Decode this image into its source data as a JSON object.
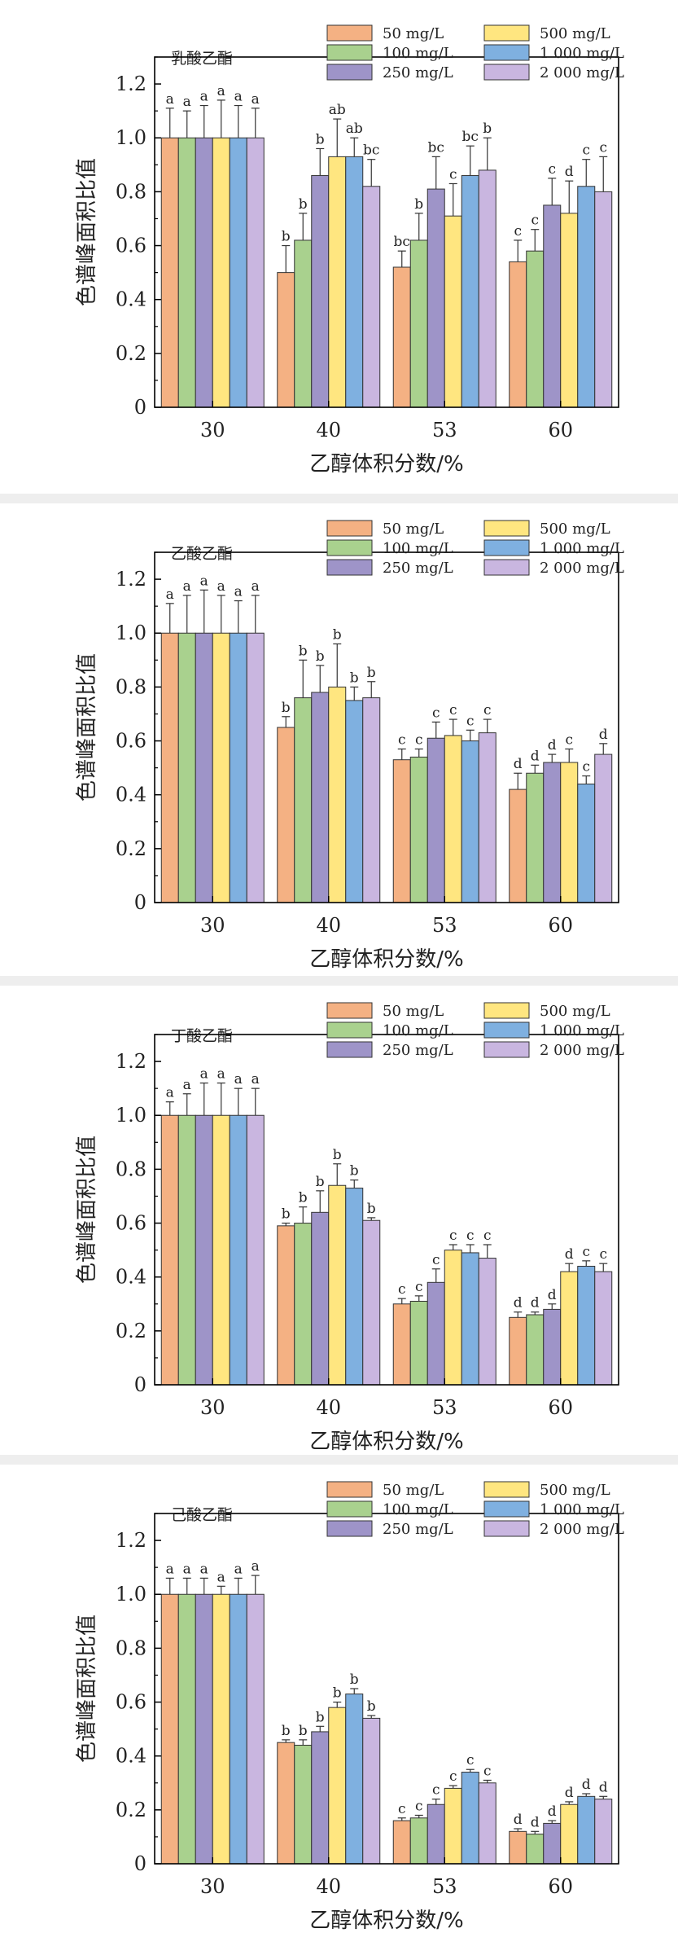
{
  "colors": {
    "50": "#f4b183",
    "100": "#a9d18e",
    "250": "#9e94c8",
    "500": "#ffe680",
    "1000": "#7fb0e0",
    "2000": "#c9b6e0"
  },
  "chart_data": [
    {
      "type": "bar",
      "title": "乳酸乙酯",
      "xlabel": "乙醇体积分数/%",
      "ylabel": "色谱峰面积比值",
      "ylim": [
        0,
        1.3
      ],
      "yticks": [
        "0",
        "0.2",
        "0.4",
        "0.6",
        "0.8",
        "1.0",
        "1.2"
      ],
      "categories": [
        "30",
        "40",
        "53",
        "60"
      ],
      "legend_position": "top-right",
      "series": [
        {
          "name": "50 mg/L",
          "values": [
            1.0,
            0.5,
            0.52,
            0.54
          ],
          "errors": [
            0.11,
            0.1,
            0.06,
            0.08
          ],
          "letters": [
            "a",
            "b",
            "bc",
            "c"
          ]
        },
        {
          "name": "100 mg/L",
          "values": [
            1.0,
            0.62,
            0.62,
            0.58
          ],
          "errors": [
            0.1,
            0.1,
            0.1,
            0.08
          ],
          "letters": [
            "a",
            "b",
            "b",
            "c"
          ]
        },
        {
          "name": "250 mg/L",
          "values": [
            1.0,
            0.86,
            0.81,
            0.75
          ],
          "errors": [
            0.12,
            0.1,
            0.12,
            0.1
          ],
          "letters": [
            "a",
            "b",
            "bc",
            "c"
          ]
        },
        {
          "name": "500 mg/L",
          "values": [
            1.0,
            0.93,
            0.71,
            0.72
          ],
          "errors": [
            0.14,
            0.14,
            0.12,
            0.12
          ],
          "letters": [
            "a",
            "ab",
            "c",
            "d"
          ]
        },
        {
          "name": "1 000 mg/L",
          "values": [
            1.0,
            0.93,
            0.86,
            0.82
          ],
          "errors": [
            0.12,
            0.07,
            0.11,
            0.1
          ],
          "letters": [
            "a",
            "ab",
            "bc",
            "c"
          ]
        },
        {
          "name": "2 000 mg/L",
          "values": [
            1.0,
            0.82,
            0.88,
            0.8
          ],
          "errors": [
            0.11,
            0.1,
            0.12,
            0.13
          ],
          "letters": [
            "a",
            "bc",
            "b",
            "c"
          ]
        }
      ]
    },
    {
      "type": "bar",
      "title": "乙酸乙酯",
      "xlabel": "乙醇体积分数/%",
      "ylabel": "色谱峰面积比值",
      "ylim": [
        0,
        1.3
      ],
      "yticks": [
        "0",
        "0.2",
        "0.4",
        "0.6",
        "0.8",
        "1.0",
        "1.2"
      ],
      "categories": [
        "30",
        "40",
        "53",
        "60"
      ],
      "legend_position": "top-right",
      "series": [
        {
          "name": "50 mg/L",
          "values": [
            1.0,
            0.65,
            0.53,
            0.42
          ],
          "errors": [
            0.11,
            0.04,
            0.04,
            0.06
          ],
          "letters": [
            "a",
            "b",
            "c",
            "d"
          ]
        },
        {
          "name": "100 mg/L",
          "values": [
            1.0,
            0.76,
            0.54,
            0.48
          ],
          "errors": [
            0.14,
            0.14,
            0.03,
            0.03
          ],
          "letters": [
            "a",
            "b",
            "c",
            "d"
          ]
        },
        {
          "name": "250 mg/L",
          "values": [
            1.0,
            0.78,
            0.61,
            0.52
          ],
          "errors": [
            0.16,
            0.1,
            0.06,
            0.03
          ],
          "letters": [
            "a",
            "b",
            "c",
            "d"
          ]
        },
        {
          "name": "500 mg/L",
          "values": [
            1.0,
            0.8,
            0.62,
            0.52
          ],
          "errors": [
            0.14,
            0.16,
            0.06,
            0.05
          ],
          "letters": [
            "a",
            "b",
            "c",
            "c"
          ]
        },
        {
          "name": "1 000 mg/L",
          "values": [
            1.0,
            0.75,
            0.6,
            0.44
          ],
          "errors": [
            0.12,
            0.05,
            0.04,
            0.03
          ],
          "letters": [
            "a",
            "b",
            "c",
            "c"
          ]
        },
        {
          "name": "2 000 mg/L",
          "values": [
            1.0,
            0.76,
            0.63,
            0.55
          ],
          "errors": [
            0.14,
            0.06,
            0.05,
            0.04
          ],
          "letters": [
            "a",
            "b",
            "c",
            "d"
          ]
        }
      ]
    },
    {
      "type": "bar",
      "title": "丁酸乙酯",
      "xlabel": "乙醇体积分数/%",
      "ylabel": "色谱峰面积比值",
      "ylim": [
        0,
        1.3
      ],
      "yticks": [
        "0",
        "0.2",
        "0.4",
        "0.6",
        "0.8",
        "1.0",
        "1.2"
      ],
      "categories": [
        "30",
        "40",
        "53",
        "60"
      ],
      "legend_position": "top-right",
      "series": [
        {
          "name": "50 mg/L",
          "values": [
            1.0,
            0.59,
            0.3,
            0.25
          ],
          "errors": [
            0.05,
            0.01,
            0.02,
            0.02
          ],
          "letters": [
            "a",
            "b",
            "c",
            "d"
          ]
        },
        {
          "name": "100 mg/L",
          "values": [
            1.0,
            0.6,
            0.31,
            0.26
          ],
          "errors": [
            0.08,
            0.06,
            0.02,
            0.01
          ],
          "letters": [
            "a",
            "b",
            "c",
            "d"
          ]
        },
        {
          "name": "250 mg/L",
          "values": [
            1.0,
            0.64,
            0.38,
            0.28
          ],
          "errors": [
            0.12,
            0.08,
            0.05,
            0.02
          ],
          "letters": [
            "a",
            "b",
            "c",
            "d"
          ]
        },
        {
          "name": "500 mg/L",
          "values": [
            1.0,
            0.74,
            0.5,
            0.42
          ],
          "errors": [
            0.12,
            0.08,
            0.02,
            0.03
          ],
          "letters": [
            "a",
            "b",
            "c",
            "d"
          ]
        },
        {
          "name": "1 000 mg/L",
          "values": [
            1.0,
            0.73,
            0.49,
            0.44
          ],
          "errors": [
            0.1,
            0.03,
            0.03,
            0.02
          ],
          "letters": [
            "a",
            "b",
            "c",
            "c"
          ]
        },
        {
          "name": "2 000 mg/L",
          "values": [
            1.0,
            0.61,
            0.47,
            0.42
          ],
          "errors": [
            0.1,
            0.01,
            0.05,
            0.03
          ],
          "letters": [
            "a",
            "b",
            "c",
            "c"
          ]
        }
      ]
    },
    {
      "type": "bar",
      "title": "己酸乙酯",
      "xlabel": "乙醇体积分数/%",
      "ylabel": "色谱峰面积比值",
      "ylim": [
        0,
        1.3
      ],
      "yticks": [
        "0",
        "0.2",
        "0.4",
        "0.6",
        "0.8",
        "1.0",
        "1.2"
      ],
      "categories": [
        "30",
        "40",
        "53",
        "60"
      ],
      "legend_position": "top-right",
      "series": [
        {
          "name": "50 mg/L",
          "values": [
            1.0,
            0.45,
            0.16,
            0.12
          ],
          "errors": [
            0.06,
            0.01,
            0.01,
            0.01
          ],
          "letters": [
            "a",
            "b",
            "c",
            "d"
          ]
        },
        {
          "name": "100 mg/L",
          "values": [
            1.0,
            0.44,
            0.17,
            0.11
          ],
          "errors": [
            0.06,
            0.02,
            0.01,
            0.01
          ],
          "letters": [
            "a",
            "b",
            "c",
            "d"
          ]
        },
        {
          "name": "250 mg/L",
          "values": [
            1.0,
            0.49,
            0.22,
            0.15
          ],
          "errors": [
            0.06,
            0.02,
            0.02,
            0.01
          ],
          "letters": [
            "a",
            "b",
            "c",
            "d"
          ]
        },
        {
          "name": "500 mg/L",
          "values": [
            1.0,
            0.58,
            0.28,
            0.22
          ],
          "errors": [
            0.03,
            0.02,
            0.01,
            0.01
          ],
          "letters": [
            "a",
            "b",
            "c",
            "d"
          ]
        },
        {
          "name": "1 000 mg/L",
          "values": [
            1.0,
            0.63,
            0.34,
            0.25
          ],
          "errors": [
            0.06,
            0.02,
            0.01,
            0.01
          ],
          "letters": [
            "a",
            "b",
            "c",
            "d"
          ]
        },
        {
          "name": "2 000 mg/L",
          "values": [
            1.0,
            0.54,
            0.3,
            0.24
          ],
          "errors": [
            0.07,
            0.01,
            0.01,
            0.01
          ],
          "letters": [
            "a",
            "b",
            "c",
            "d"
          ]
        }
      ]
    }
  ]
}
